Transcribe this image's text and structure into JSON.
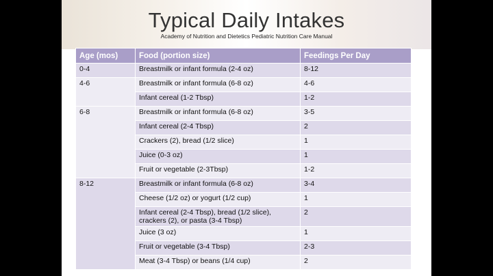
{
  "slide": {
    "title": "Typical Daily Intakes",
    "subtitle": "Academy of Nutrition and Dietetics Pediatric Nutrition Care Manual"
  },
  "table": {
    "headers": [
      "Age (mos)",
      "Food (portion size)",
      "Feedings Per Day"
    ],
    "groups": [
      {
        "age": "0-4",
        "rows": [
          {
            "food": "Breastmilk or infant formula (2-4 oz)",
            "feedings": "8-12"
          }
        ]
      },
      {
        "age": "4-6",
        "rows": [
          {
            "food": "Breastmilk or infant formula (6-8 oz)",
            "feedings": "4-6"
          },
          {
            "food": "Infant cereal (1-2 Tbsp)",
            "feedings": "1-2"
          }
        ]
      },
      {
        "age": "6-8",
        "rows": [
          {
            "food": "Breastmilk or infant formula (6-8 oz)",
            "feedings": "3-5"
          },
          {
            "food": "Infant cereal (2-4 Tbsp)",
            "feedings": "2"
          },
          {
            "food": "Crackers (2), bread (1/2 slice)",
            "feedings": "1"
          },
          {
            "food": "Juice (0-3 oz)",
            "feedings": "1"
          },
          {
            "food": "Fruit or vegetable (2-3Tbsp)",
            "feedings": "1-2"
          }
        ]
      },
      {
        "age": "8-12",
        "rows": [
          {
            "food": "Breastmilk or infant formula (6-8 oz)",
            "feedings": "3-4"
          },
          {
            "food": "Cheese (1/2 oz) or yogurt (1/2 cup)",
            "feedings": "1"
          },
          {
            "food": "Infant cereal (2-4 Tbsp), bread (1/2 slice), crackers (2), or pasta (3-4 Tbsp)",
            "feedings": "2"
          },
          {
            "food": "Juice (3 oz)",
            "feedings": "1"
          },
          {
            "food": "Fruit or vegetable (3-4 Tbsp)",
            "feedings": "2-3"
          },
          {
            "food": "Meat (3-4 Tbsp) or beans (1/4 cup)",
            "feedings": "2"
          }
        ]
      }
    ]
  },
  "colors": {
    "header_bg": "#a99ec8",
    "row_dark": "#ded9ea",
    "row_light": "#eeecf4"
  }
}
